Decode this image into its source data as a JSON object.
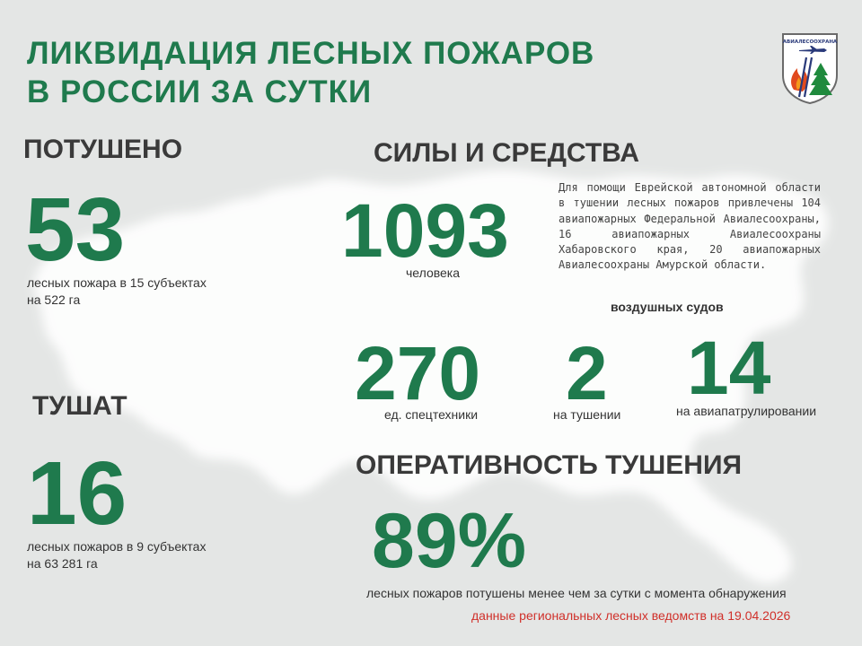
{
  "title": {
    "line1": "ЛИКВИДАЦИЯ ЛЕСНЫХ ПОЖАРОВ",
    "line2": "В РОССИИ ЗА СУТКИ"
  },
  "logo": {
    "text": "АВИАЛЕСООХРАНА",
    "icons": [
      "airplane-icon",
      "flame-icon",
      "fir-tree-icon"
    ]
  },
  "extinguished": {
    "heading": "ПОТУШЕНО",
    "number": "53",
    "line1": "лесных пожара в 15 субъектах",
    "line2": "на 522 га"
  },
  "active": {
    "heading": "ТУШАТ",
    "number": "16",
    "line1": "лесных пожаров в 9 субъектах",
    "line2": "на 63 281 га"
  },
  "forces": {
    "heading": "СИЛЫ И СРЕДСТВА",
    "people_number": "1093",
    "people_label": "человека",
    "description": "Для помощи Еврейской автономной области в тушении лесных пожаров привлечены 104 авиапожарных Федеральной Авиалесоохраны, 16 авиапожарных Авиалесоохраны Хабаровского края, 20 авиапожарных Авиалесоохраны Амурской области.",
    "aircraft_header": "воздушных судов",
    "equipment_number": "270",
    "equipment_label": "ед. спецтехники",
    "aircraft_fighting_number": "2",
    "aircraft_fighting_label": "на тушении",
    "aircraft_patrol_number": "14",
    "aircraft_patrol_label": "на авиапатрулировании"
  },
  "efficiency": {
    "heading": "ОПЕРАТИВНОСТЬ ТУШЕНИЯ",
    "percent": "89%",
    "label": "лесных пожаров потушены менее чем за сутки с момента обнаружения"
  },
  "source_note": "данные региональных лесных ведомств на 19.04.2026",
  "colors": {
    "accent_green": "#1f7a4d",
    "heading_gray": "#3a3a3a",
    "note_red": "#d0302a",
    "background": "#e4e6e5",
    "map_white": "#ffffff"
  }
}
